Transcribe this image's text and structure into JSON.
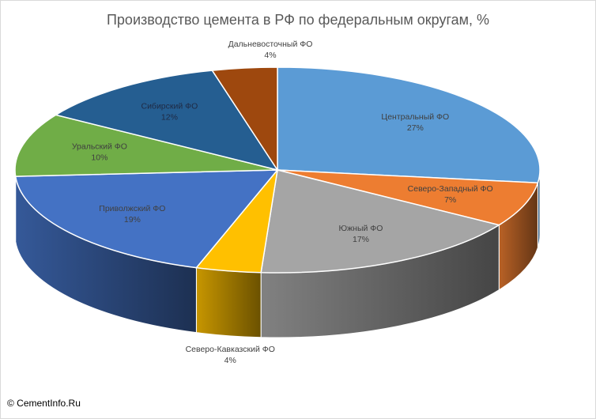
{
  "chart_data": {
    "type": "pie",
    "title": "Производство цемента в РФ по федеральным округам, %",
    "categories": [
      "Центральный ФО",
      "Северо-Западный ФО",
      "Южный ФО",
      "Северо-Кавказский ФО",
      "Приволжский ФО",
      "Уральский ФО",
      "Сибирский ФО",
      "Дальневосточный ФО"
    ],
    "values": [
      27,
      7,
      17,
      4,
      19,
      10,
      12,
      4
    ],
    "value_labels": [
      "27%",
      "7%",
      "17%",
      "4%",
      "19%",
      "10%",
      "12%",
      "4%"
    ],
    "colors": [
      "#5b9bd5",
      "#ed7d31",
      "#a5a5a5",
      "#ffc000",
      "#4472c4",
      "#70ad47",
      "#255e91",
      "#9e480e"
    ],
    "style": "3d"
  },
  "footer": {
    "copyright": "© CementInfo.Ru"
  }
}
